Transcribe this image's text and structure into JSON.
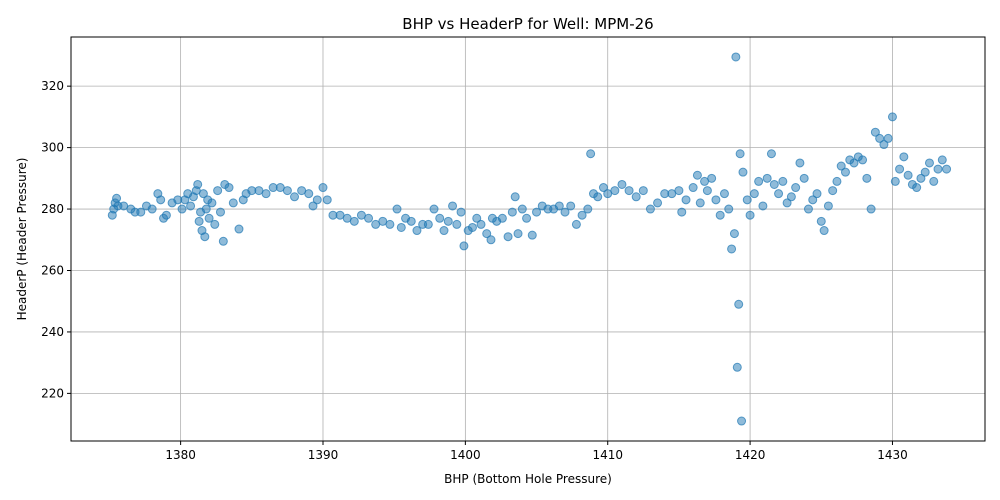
{
  "chart_data": {
    "type": "scatter",
    "title": "BHP vs HeaderP for Well: MPM-26",
    "xlabel": "BHP (Bottom Hole Pressure)",
    "ylabel": "HeaderP (Header Pressure)",
    "xlim": [
      1372.3,
      1436.5
    ],
    "ylim": [
      204.5,
      336
    ],
    "xticks": [
      "1380",
      "1390",
      "1400",
      "1410",
      "1420",
      "1430"
    ],
    "yticks": [
      "220",
      "240",
      "260",
      "280",
      "300",
      "320"
    ],
    "grid": true,
    "color": "#1f77b4",
    "points": [
      [
        1375.2,
        278
      ],
      [
        1375.3,
        280
      ],
      [
        1375.4,
        282
      ],
      [
        1375.5,
        283.5
      ],
      [
        1375.6,
        281
      ],
      [
        1376.0,
        281
      ],
      [
        1376.5,
        280
      ],
      [
        1376.8,
        279
      ],
      [
        1377.2,
        279
      ],
      [
        1377.6,
        281
      ],
      [
        1378.0,
        280
      ],
      [
        1378.4,
        285
      ],
      [
        1378.6,
        283
      ],
      [
        1378.8,
        277
      ],
      [
        1379.0,
        278
      ],
      [
        1379.4,
        282
      ],
      [
        1379.8,
        283
      ],
      [
        1380.1,
        280
      ],
      [
        1380.3,
        283
      ],
      [
        1380.5,
        285
      ],
      [
        1380.7,
        281
      ],
      [
        1380.9,
        284
      ],
      [
        1381.1,
        286
      ],
      [
        1381.2,
        288
      ],
      [
        1381.3,
        276
      ],
      [
        1381.4,
        279
      ],
      [
        1381.5,
        273
      ],
      [
        1381.6,
        285
      ],
      [
        1381.7,
        271
      ],
      [
        1381.8,
        280
      ],
      [
        1381.9,
        283
      ],
      [
        1382.0,
        277
      ],
      [
        1382.2,
        282
      ],
      [
        1382.4,
        275
      ],
      [
        1382.6,
        286
      ],
      [
        1382.8,
        279
      ],
      [
        1383.0,
        269.5
      ],
      [
        1383.1,
        288
      ],
      [
        1383.4,
        287
      ],
      [
        1383.7,
        282
      ],
      [
        1384.1,
        273.5
      ],
      [
        1384.4,
        283
      ],
      [
        1384.6,
        285
      ],
      [
        1385.0,
        286
      ],
      [
        1385.5,
        286
      ],
      [
        1386.0,
        285
      ],
      [
        1386.5,
        287
      ],
      [
        1387.0,
        287
      ],
      [
        1387.5,
        286
      ],
      [
        1388.0,
        284
      ],
      [
        1388.5,
        286
      ],
      [
        1389.0,
        285
      ],
      [
        1389.3,
        281
      ],
      [
        1389.6,
        283
      ],
      [
        1390.0,
        287
      ],
      [
        1390.3,
        283
      ],
      [
        1390.7,
        278
      ],
      [
        1391.2,
        278
      ],
      [
        1391.7,
        277
      ],
      [
        1392.2,
        276
      ],
      [
        1392.7,
        278
      ],
      [
        1393.2,
        277
      ],
      [
        1393.7,
        275
      ],
      [
        1394.2,
        276
      ],
      [
        1394.7,
        275
      ],
      [
        1395.2,
        280
      ],
      [
        1395.5,
        274
      ],
      [
        1395.8,
        277
      ],
      [
        1396.2,
        276
      ],
      [
        1396.6,
        273
      ],
      [
        1397.0,
        275
      ],
      [
        1397.4,
        275
      ],
      [
        1397.8,
        280
      ],
      [
        1398.2,
        277
      ],
      [
        1398.5,
        273
      ],
      [
        1398.8,
        276
      ],
      [
        1399.1,
        281
      ],
      [
        1399.4,
        275
      ],
      [
        1399.7,
        279
      ],
      [
        1399.9,
        268
      ],
      [
        1400.2,
        273
      ],
      [
        1400.5,
        274
      ],
      [
        1400.8,
        277
      ],
      [
        1401.1,
        275
      ],
      [
        1401.5,
        272
      ],
      [
        1401.8,
        270
      ],
      [
        1401.9,
        277
      ],
      [
        1402.2,
        276
      ],
      [
        1402.6,
        277
      ],
      [
        1403.0,
        271
      ],
      [
        1403.3,
        279
      ],
      [
        1403.5,
        284
      ],
      [
        1403.7,
        272
      ],
      [
        1404.0,
        280
      ],
      [
        1404.3,
        277
      ],
      [
        1404.7,
        271.5
      ],
      [
        1405.0,
        279
      ],
      [
        1405.4,
        281
      ],
      [
        1405.8,
        280
      ],
      [
        1406.2,
        280
      ],
      [
        1406.6,
        281
      ],
      [
        1407.0,
        279
      ],
      [
        1407.4,
        281
      ],
      [
        1407.8,
        275
      ],
      [
        1408.2,
        278
      ],
      [
        1408.6,
        280
      ],
      [
        1408.8,
        298
      ],
      [
        1409.0,
        285
      ],
      [
        1409.3,
        284
      ],
      [
        1409.7,
        287
      ],
      [
        1410.0,
        285
      ],
      [
        1410.5,
        286
      ],
      [
        1411.0,
        288
      ],
      [
        1411.5,
        286
      ],
      [
        1412.0,
        284
      ],
      [
        1412.5,
        286
      ],
      [
        1413.0,
        280
      ],
      [
        1413.5,
        282
      ],
      [
        1414.0,
        285
      ],
      [
        1414.5,
        285
      ],
      [
        1415.0,
        286
      ],
      [
        1415.2,
        279
      ],
      [
        1415.5,
        283
      ],
      [
        1416.0,
        287
      ],
      [
        1416.3,
        291
      ],
      [
        1416.5,
        282
      ],
      [
        1416.8,
        289
      ],
      [
        1417.0,
        286
      ],
      [
        1417.3,
        290
      ],
      [
        1417.6,
        283
      ],
      [
        1417.9,
        278
      ],
      [
        1418.2,
        285
      ],
      [
        1418.5,
        280
      ],
      [
        1418.7,
        267
      ],
      [
        1418.9,
        272
      ],
      [
        1419.0,
        329.5
      ],
      [
        1419.1,
        228.5
      ],
      [
        1419.2,
        249
      ],
      [
        1419.3,
        298
      ],
      [
        1419.4,
        211
      ],
      [
        1419.5,
        292
      ],
      [
        1419.8,
        283
      ],
      [
        1420.0,
        278
      ],
      [
        1420.3,
        285
      ],
      [
        1420.6,
        289
      ],
      [
        1420.9,
        281
      ],
      [
        1421.2,
        290
      ],
      [
        1421.5,
        298
      ],
      [
        1421.7,
        288
      ],
      [
        1422.0,
        285
      ],
      [
        1422.3,
        289
      ],
      [
        1422.6,
        282
      ],
      [
        1422.9,
        284
      ],
      [
        1423.2,
        287
      ],
      [
        1423.5,
        295
      ],
      [
        1423.8,
        290
      ],
      [
        1424.1,
        280
      ],
      [
        1424.4,
        283
      ],
      [
        1424.7,
        285
      ],
      [
        1425.0,
        276
      ],
      [
        1425.2,
        273
      ],
      [
        1425.5,
        281
      ],
      [
        1425.8,
        286
      ],
      [
        1426.1,
        289
      ],
      [
        1426.4,
        294
      ],
      [
        1426.7,
        292
      ],
      [
        1427.0,
        296
      ],
      [
        1427.3,
        295
      ],
      [
        1427.6,
        297
      ],
      [
        1427.9,
        296
      ],
      [
        1428.2,
        290
      ],
      [
        1428.5,
        280
      ],
      [
        1428.8,
        305
      ],
      [
        1429.1,
        303
      ],
      [
        1429.4,
        301
      ],
      [
        1429.7,
        303
      ],
      [
        1430.0,
        310
      ],
      [
        1430.2,
        289
      ],
      [
        1430.5,
        293
      ],
      [
        1430.8,
        297
      ],
      [
        1431.1,
        291
      ],
      [
        1431.4,
        288
      ],
      [
        1431.7,
        287
      ],
      [
        1432.0,
        290
      ],
      [
        1432.3,
        292
      ],
      [
        1432.6,
        295
      ],
      [
        1432.9,
        289
      ],
      [
        1433.2,
        293
      ],
      [
        1433.5,
        296
      ],
      [
        1433.8,
        293
      ]
    ]
  }
}
